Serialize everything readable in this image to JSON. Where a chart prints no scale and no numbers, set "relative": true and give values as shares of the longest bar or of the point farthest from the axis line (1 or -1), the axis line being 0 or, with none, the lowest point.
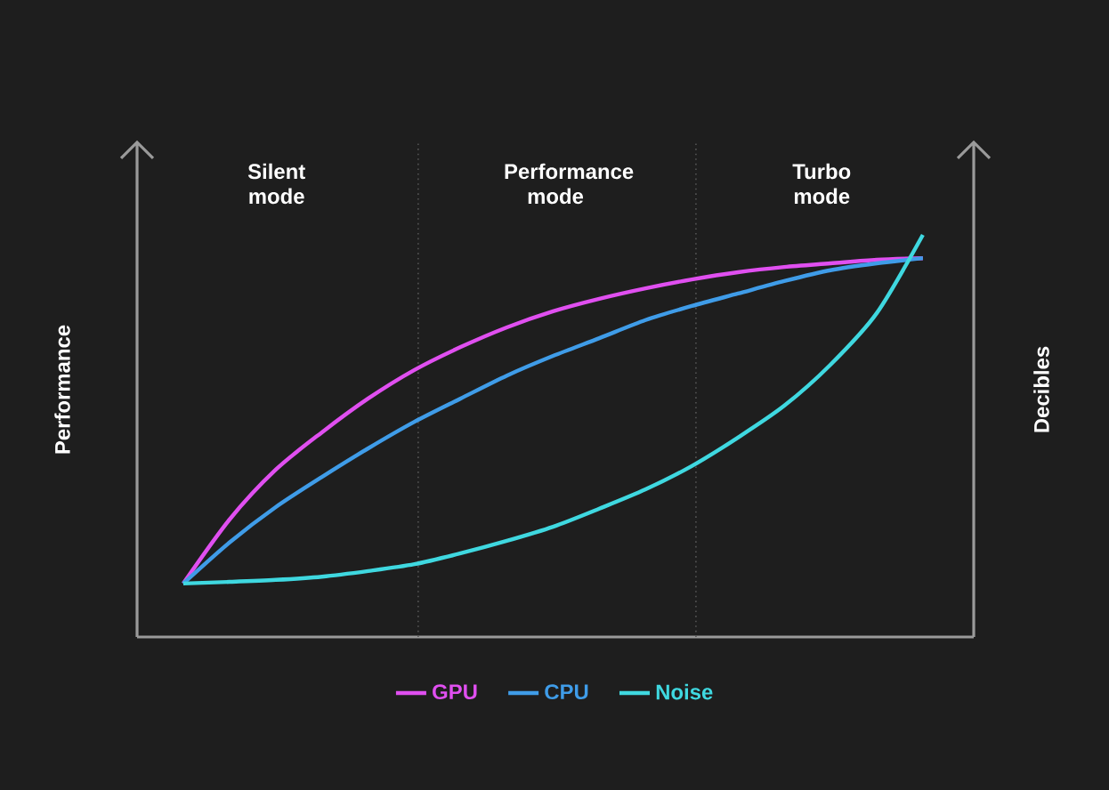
{
  "chart_data": {
    "type": "line",
    "relative": true,
    "ylabel": "Performance",
    "y2label": "Decibles",
    "categories": [
      null,
      null,
      null,
      null,
      null,
      null,
      null,
      null,
      null,
      null,
      null,
      null,
      null,
      null,
      null,
      null,
      null
    ],
    "series": [
      {
        "name": "GPU",
        "color": "#e04ff0",
        "values": [
          0.133,
          0.292,
          0.416,
          0.509,
          0.593,
          0.664,
          0.721,
          0.77,
          0.81,
          0.841,
          0.867,
          0.889,
          0.907,
          0.92,
          0.929,
          0.938,
          0.942
        ]
      },
      {
        "name": "CPU",
        "color": "#3f9ce8",
        "values": [
          0.133,
          0.235,
          0.323,
          0.398,
          0.469,
          0.535,
          0.593,
          0.65,
          0.699,
          0.743,
          0.788,
          0.823,
          0.854,
          0.885,
          0.912,
          0.929,
          0.942
        ]
      },
      {
        "name": "Noise",
        "color": "#3fd8e0",
        "values": [
          0.133,
          0.137,
          0.142,
          0.15,
          0.164,
          0.181,
          0.208,
          0.239,
          0.274,
          0.319,
          0.367,
          0.425,
          0.496,
          0.575,
          0.677,
          0.805,
          1.0
        ]
      }
    ],
    "annotations": [
      "Silent mode",
      "Performance mode",
      "Turbo mode"
    ],
    "legend": "bottom",
    "marker": "none",
    "line_style": "solid"
  }
}
